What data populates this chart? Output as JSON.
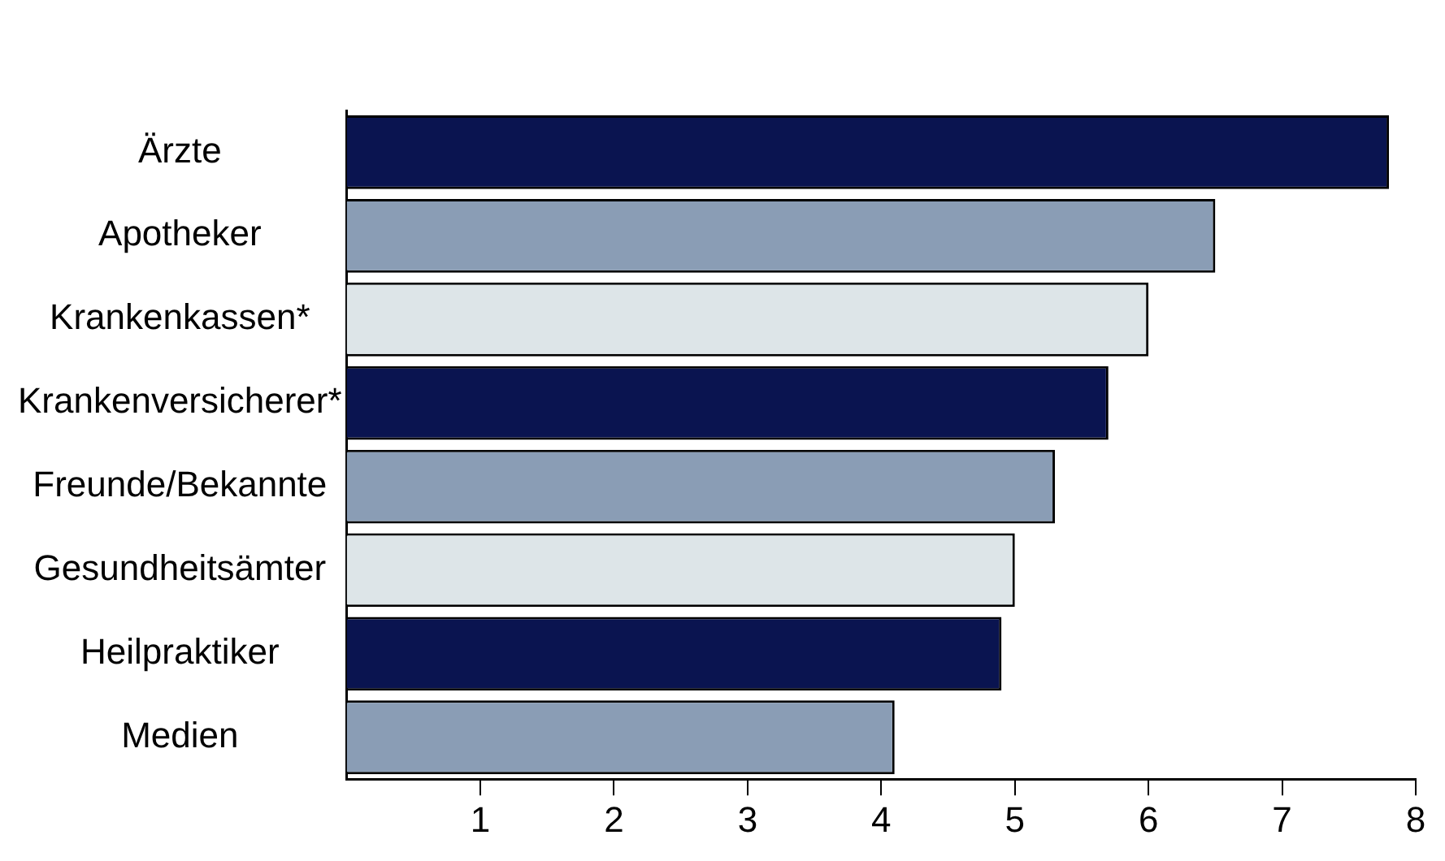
{
  "chart_data": {
    "type": "bar",
    "orientation": "horizontal",
    "categories": [
      "Ärzte",
      "Apotheker",
      "Krankenkassen*",
      "Krankenversicherer*",
      "Freunde/Bekannte",
      "Gesundheitsämter",
      "Heilpraktiker",
      "Medien"
    ],
    "values": [
      7.8,
      6.5,
      6.0,
      5.7,
      5.3,
      5.0,
      4.9,
      4.1
    ],
    "colors": [
      "#0a1450",
      "#8a9db5",
      "#dde5e8",
      "#0a1450",
      "#8a9db5",
      "#dde5e8",
      "#0a1450",
      "#8a9db5"
    ],
    "xlim": [
      0,
      8
    ],
    "xticks": [
      1,
      2,
      3,
      4,
      5,
      6,
      7,
      8
    ],
    "grid": false,
    "legend": false
  }
}
